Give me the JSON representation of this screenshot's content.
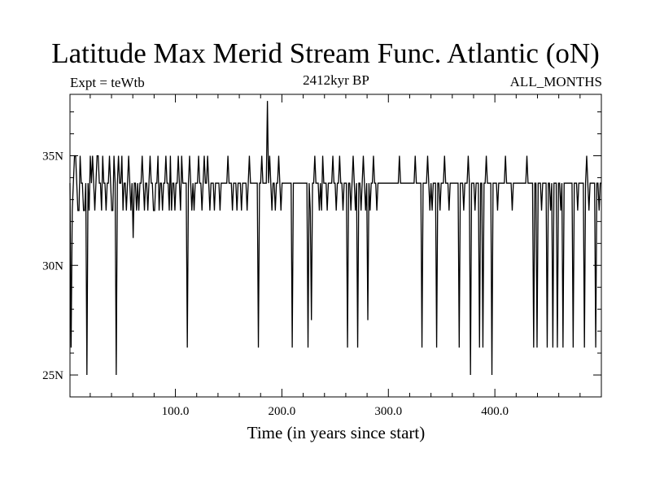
{
  "chart_data": {
    "type": "line",
    "title": "Latitude Max Merid Stream Func. Atlantic (oN)",
    "subtitle": "2412kyr BP",
    "left_label": "Expt = teWtb",
    "right_label": "ALL_MONTHS",
    "xlabel": "Time (in years since start)",
    "ylabel": "",
    "xlim": [
      1,
      500
    ],
    "ylim": [
      24,
      37.8
    ],
    "xticks": [
      100,
      200,
      300,
      400
    ],
    "xtick_labels": [
      "100.0",
      "200.0",
      "300.0",
      "400.0"
    ],
    "yticks": [
      25,
      30,
      35
    ],
    "ytick_labels": [
      "25N",
      "30N",
      "35N"
    ],
    "grid": false,
    "series": [
      {
        "values": [
          33.75,
          26.25,
          32.5,
          33.75,
          35,
          35,
          33.75,
          32.5,
          32.5,
          35,
          33.75,
          33.75,
          32.5,
          32.5,
          33.75,
          25,
          33.75,
          32.5,
          35,
          33.75,
          35,
          33.75,
          32.5,
          33.75,
          35,
          35,
          33.75,
          33.75,
          32.5,
          35,
          33.75,
          33.75,
          32.5,
          33.75,
          33.75,
          35,
          33.75,
          32.5,
          32.5,
          35,
          33.75,
          25,
          33.75,
          35,
          33.75,
          33.75,
          35,
          32.5,
          33.75,
          33.75,
          32.5,
          33.75,
          35,
          33.75,
          32.5,
          33.75,
          31.25,
          33.75,
          33.75,
          32.5,
          33.75,
          32.5,
          33.75,
          33.75,
          35,
          33.75,
          32.5,
          33.75,
          33.75,
          32.5,
          33.75,
          35,
          33.75,
          33.75,
          32.5,
          32.5,
          33.75,
          33.75,
          35,
          32.5,
          33.75,
          33.75,
          32.5,
          33.75,
          33.75,
          35,
          33.75,
          33.75,
          32.5,
          35,
          32.5,
          33.75,
          33.75,
          32.5,
          33.75,
          33.75,
          35,
          33.75,
          32.5,
          35,
          33.75,
          33.75,
          33.75,
          33.75,
          26.25,
          33.75,
          35,
          33.75,
          32.5,
          33.75,
          32.5,
          33.75,
          33.75,
          33.75,
          35,
          33.75,
          33.75,
          32.5,
          33.75,
          35,
          33.75,
          33.75,
          35,
          33.75,
          32.5,
          33.75,
          33.75,
          33.75,
          32.5,
          33.75,
          33.75,
          33.75,
          33.75,
          32.5,
          33.75,
          33.75,
          33.75,
          33.75,
          33.75,
          33.75,
          35,
          33.75,
          33.75,
          33.75,
          32.5,
          33.75,
          33.75,
          33.75,
          32.5,
          33.75,
          33.75,
          33.75,
          32.5,
          33.75,
          33.75,
          33.75,
          33.75,
          32.5,
          33.75,
          35,
          33.75,
          33.75,
          33.75,
          33.75,
          33.75,
          33.75,
          33.75,
          26.25,
          33.75,
          33.75,
          35,
          33.75,
          33.75,
          33.75,
          33.75,
          37.5,
          33.75,
          35,
          33.75,
          32.5,
          33.75,
          33.75,
          32.5,
          33.75,
          33.75,
          35,
          33.75,
          32.5,
          33.75,
          33.75,
          33.75,
          33.75,
          33.75,
          33.75,
          33.75,
          33.75,
          33.75,
          26.25,
          33.75,
          33.75,
          33.75,
          33.75,
          33.75,
          33.75,
          33.75,
          33.75,
          33.75,
          33.75,
          33.75,
          33.75,
          33.75,
          26.25,
          33.75,
          32.5,
          27.5,
          33.75,
          33.75,
          35,
          33.75,
          33.75,
          33.75,
          32.5,
          33.75,
          32.5,
          35,
          33.75,
          33.75,
          33.75,
          32.5,
          33.75,
          33.75,
          33.75,
          33.75,
          35,
          33.75,
          33.75,
          32.5,
          33.75,
          33.75,
          35,
          33.75,
          33.75,
          32.5,
          33.75,
          33.75,
          33.75,
          26.25,
          33.75,
          33.75,
          32.5,
          33.75,
          35,
          33.75,
          32.5,
          33.75,
          26.25,
          33.75,
          33.75,
          32.5,
          33.75,
          35,
          33.75,
          32.5,
          33.75,
          27.5,
          33.75,
          32.5,
          33.75,
          33.75,
          35,
          33.75,
          33.75,
          32.5,
          33.75,
          33.75,
          33.75,
          33.75,
          33.75,
          33.75,
          33.75,
          33.75,
          33.75,
          33.75,
          33.75,
          33.75,
          33.75,
          33.75,
          33.75,
          33.75,
          33.75,
          33.75,
          33.75,
          35,
          33.75,
          33.75,
          33.75,
          33.75,
          33.75,
          33.75,
          33.75,
          33.75,
          33.75,
          33.75,
          33.75,
          33.75,
          33.75,
          35,
          33.75,
          33.75,
          33.75,
          33.75,
          33.75,
          26.25,
          33.75,
          33.75,
          33.75,
          33.75,
          35,
          33.75,
          32.5,
          33.75,
          32.5,
          33.75,
          33.75,
          33.75,
          26.25,
          33.75,
          33.75,
          32.5,
          33.75,
          33.75,
          33.75,
          35,
          33.75,
          33.75,
          33.75,
          32.5,
          33.75,
          33.75,
          33.75,
          33.75,
          33.75,
          33.75,
          33.75,
          33.75,
          26.25,
          33.75,
          33.75,
          33.75,
          32.5,
          33.75,
          33.75,
          33.75,
          35,
          33.75,
          25,
          33.75,
          33.75,
          33.75,
          32.5,
          33.75,
          33.75,
          33.75,
          26.25,
          33.75,
          33.75,
          26.25,
          33.75,
          33.75,
          35,
          33.75,
          33.75,
          33.75,
          33.75,
          25,
          33.75,
          33.75,
          33.75,
          33.75,
          32.5,
          33.75,
          33.75,
          33.75,
          33.75,
          33.75,
          33.75,
          35,
          33.75,
          33.75,
          33.75,
          33.75,
          33.75,
          32.5,
          33.75,
          33.75,
          33.75,
          33.75,
          33.75,
          33.75,
          33.75,
          33.75,
          33.75,
          33.75,
          33.75,
          33.75,
          35,
          33.75,
          33.75,
          33.75,
          33.75,
          33.75,
          26.25,
          33.75,
          33.75,
          26.25,
          33.75,
          33.75,
          33.75,
          32.5,
          33.75,
          33.75,
          33.75,
          33.75,
          26.25,
          33.75,
          33.75,
          32.5,
          33.75,
          26.25,
          33.75,
          33.75,
          33.75,
          26.25,
          33.75,
          33.75,
          32.5,
          33.75,
          26.25,
          33.75,
          33.75,
          33.75,
          33.75,
          33.75,
          33.75,
          33.75,
          33.75,
          26.25,
          33.75,
          33.75,
          33.75,
          32.5,
          33.75,
          33.75,
          33.75,
          33.75,
          33.75,
          26.25,
          33.75,
          35,
          33.75,
          32.5,
          33.75,
          33.75,
          33.75,
          33.75,
          33.75,
          26.25,
          33.75,
          33.75,
          32.5,
          33.75,
          33.75
        ],
        "color": "#000000"
      }
    ]
  }
}
